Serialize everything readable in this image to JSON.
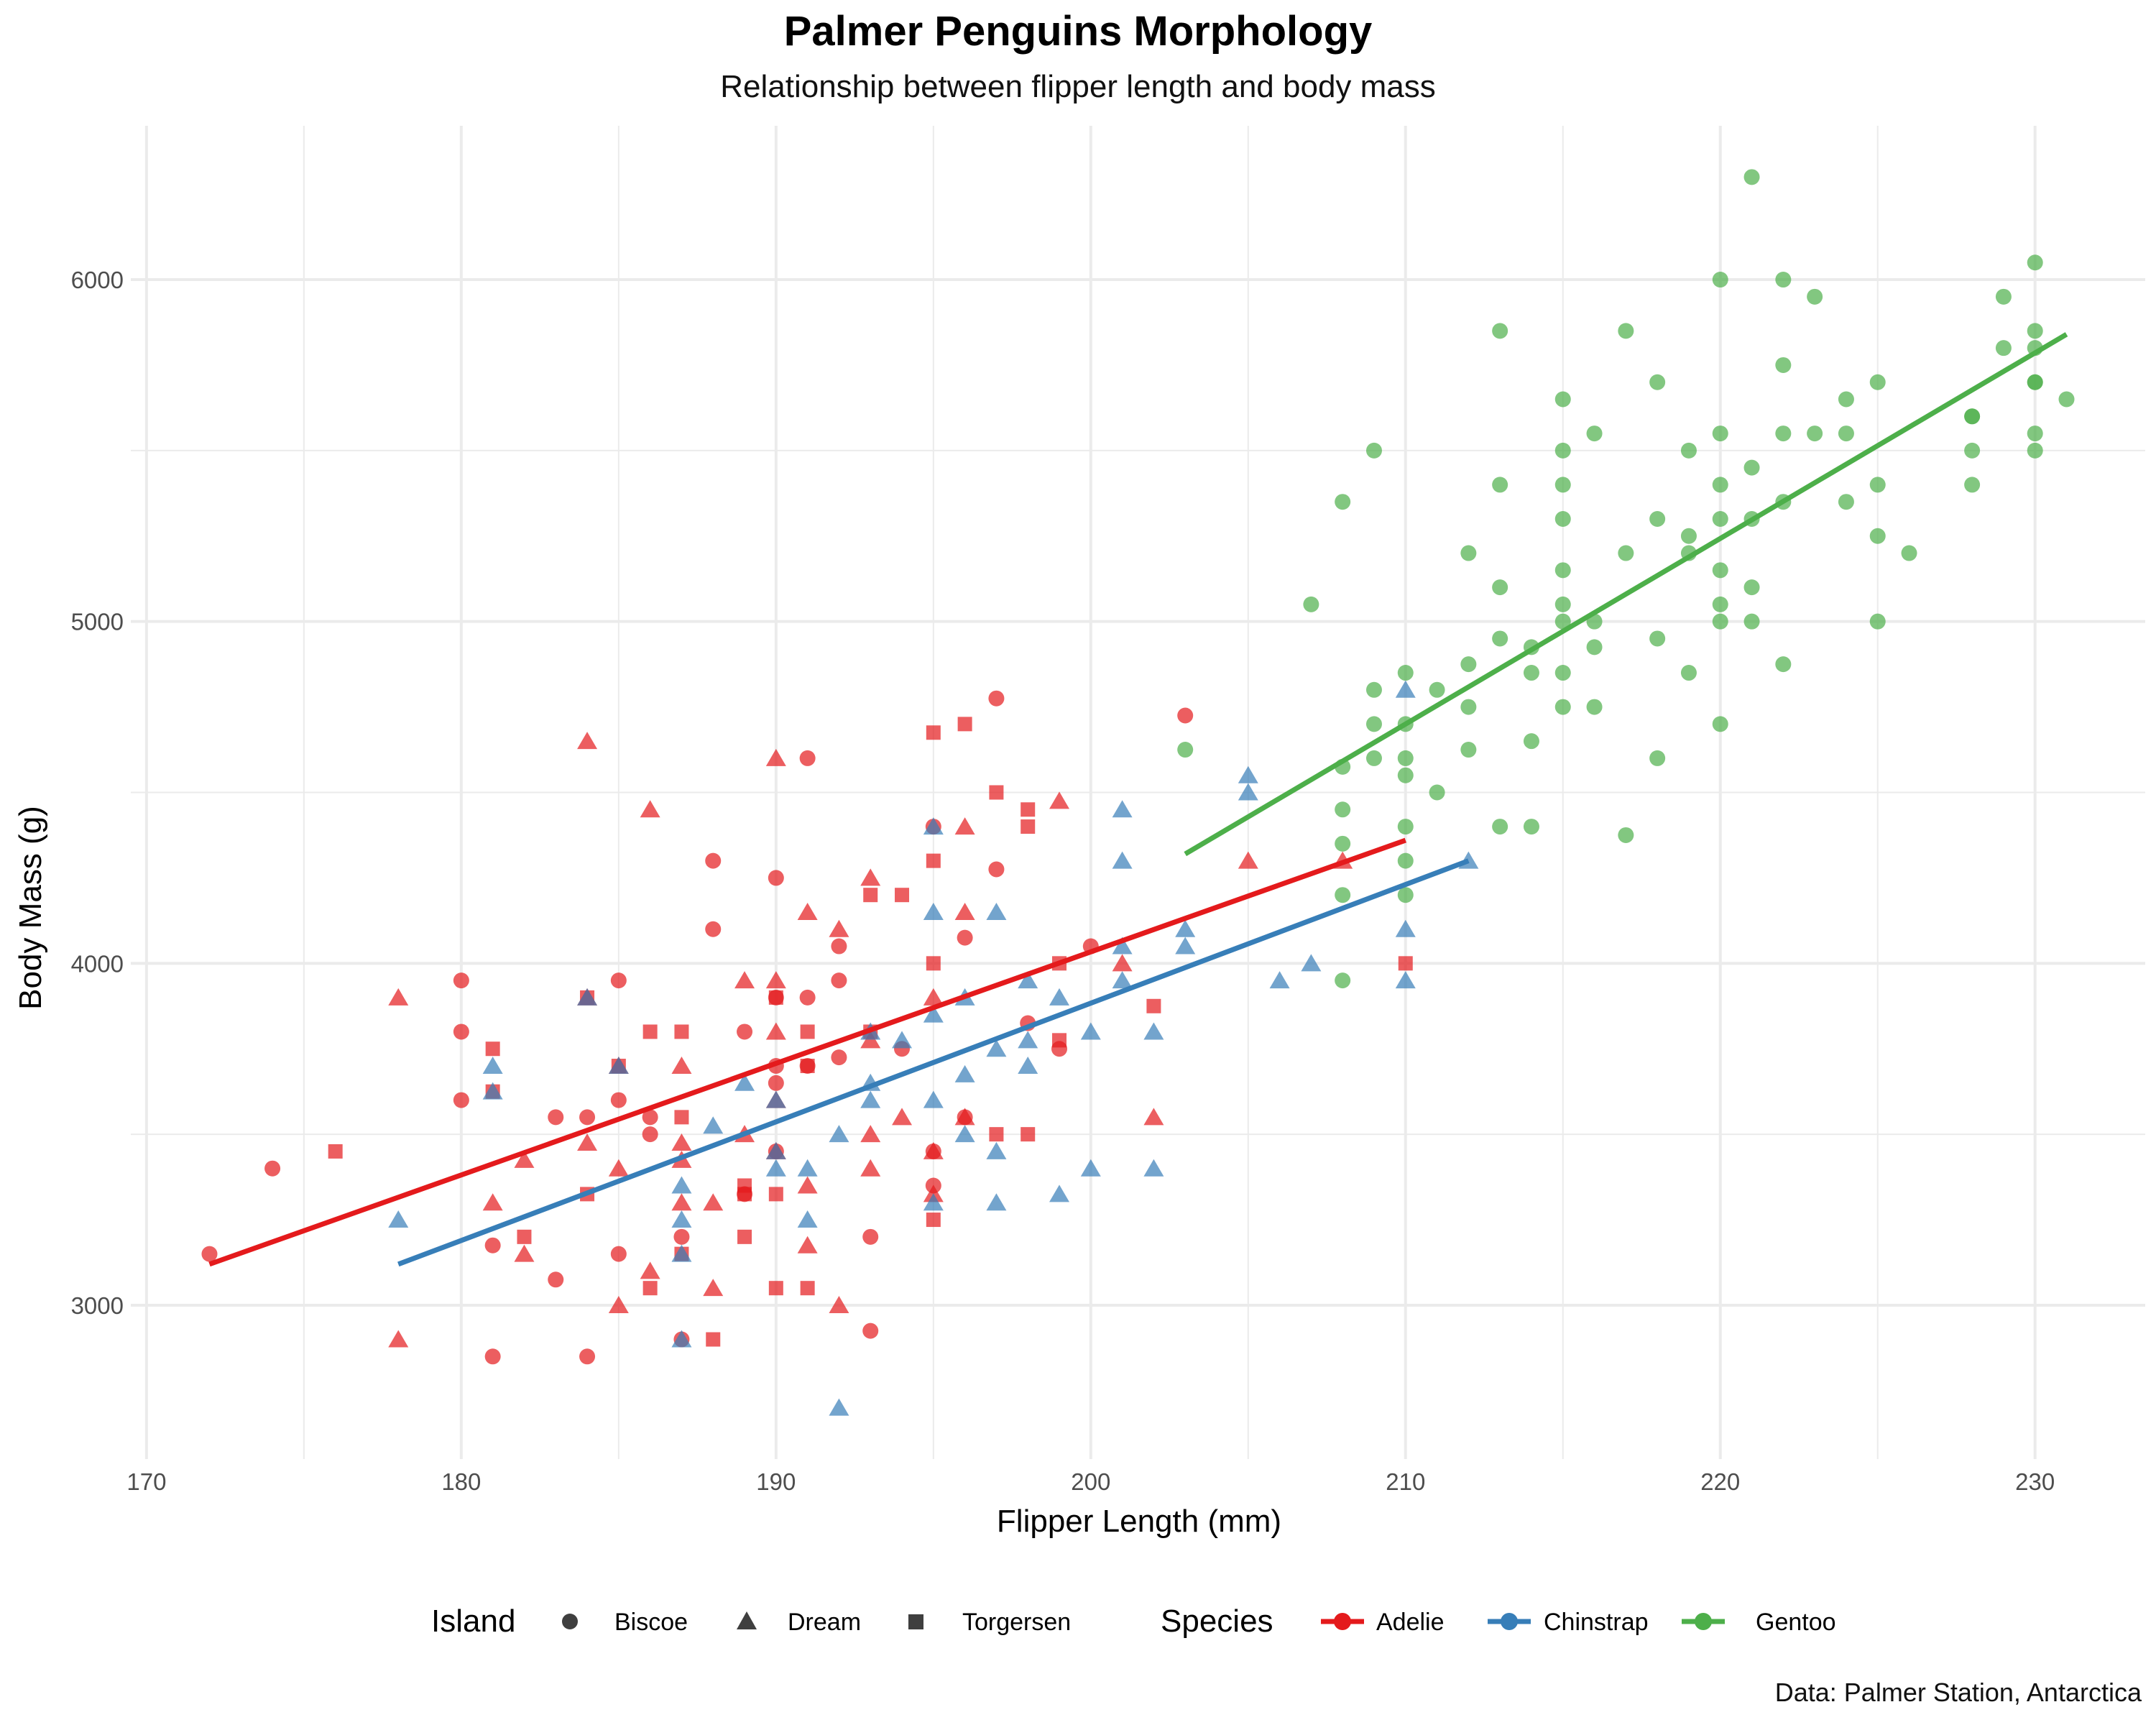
{
  "title": "Palmer Penguins Morphology",
  "subtitle": "Relationship between flipper length and body mass",
  "caption": "Data: Palmer Station, Antarctica",
  "colors": {
    "Adelie": "#e41a1c",
    "Chinstrap": "#377eb8",
    "Gentoo": "#4daf4a",
    "grid": "#ebebeb"
  },
  "legend": {
    "island_title": "Island",
    "islands": [
      "Biscoe",
      "Dream",
      "Torgersen"
    ],
    "species_title": "Species",
    "species": [
      "Adelie",
      "Chinstrap",
      "Gentoo"
    ],
    "position": "bottom"
  },
  "chart_data": {
    "type": "scatter",
    "title": "Palmer Penguins Morphology",
    "subtitle": "Relationship between flipper length and body mass",
    "xlabel": "Flipper Length (mm)",
    "ylabel": "Body Mass (g)",
    "xlim": [
      169.5,
      233.5
    ],
    "ylim": [
      2550,
      6450
    ],
    "x_ticks": [
      170,
      180,
      190,
      200,
      210,
      220,
      230
    ],
    "y_ticks": [
      3000,
      4000,
      5000,
      6000
    ],
    "grid": true,
    "shape_key": {
      "Biscoe": "circle",
      "Dream": "triangle",
      "Torgersen": "square"
    },
    "trend_lines": [
      {
        "name": "Adelie",
        "x": [
          172,
          210
        ],
        "y": [
          3120,
          4360
        ]
      },
      {
        "name": "Chinstrap",
        "x": [
          178,
          212
        ],
        "y": [
          3120,
          4300
        ]
      },
      {
        "name": "Gentoo",
        "x": [
          203,
          231
        ],
        "y": [
          4320,
          5840
        ]
      }
    ],
    "series": [
      {
        "name": "Adelie",
        "island": "Biscoe",
        "shape": "circle",
        "x": [
          172,
          174,
          180,
          180,
          180,
          181,
          181,
          183,
          183,
          184,
          184,
          185,
          185,
          185,
          186,
          186,
          187,
          187,
          188,
          188,
          189,
          189,
          190,
          190,
          190,
          190,
          190,
          191,
          191,
          191,
          192,
          192,
          192,
          193,
          193,
          194,
          195,
          195,
          195,
          196,
          196,
          197,
          197,
          198,
          199,
          200,
          203
        ],
        "y": [
          3150,
          3400,
          3950,
          3800,
          3600,
          3175,
          2850,
          3550,
          3075,
          3550,
          2850,
          3950,
          3600,
          3150,
          3550,
          3500,
          3200,
          2900,
          4300,
          4100,
          3800,
          3325,
          4250,
          3900,
          3700,
          3650,
          3450,
          4600,
          3900,
          3700,
          4050,
          3950,
          3725,
          3200,
          2925,
          3750,
          4400,
          3350,
          3450,
          4075,
          3550,
          4775,
          4275,
          3825,
          3750,
          4050,
          4725
        ]
      },
      {
        "name": "Adelie",
        "island": "Dream",
        "shape": "triangle",
        "x": [
          178,
          178,
          181,
          182,
          182,
          184,
          184,
          184,
          185,
          185,
          185,
          186,
          186,
          187,
          187,
          187,
          187,
          188,
          188,
          189,
          189,
          190,
          190,
          190,
          190,
          190,
          191,
          191,
          191,
          192,
          192,
          193,
          193,
          193,
          193,
          194,
          195,
          195,
          195,
          196,
          196,
          196,
          199,
          201,
          202,
          205,
          208
        ],
        "y": [
          3900,
          2900,
          3300,
          3425,
          3150,
          4650,
          3900,
          3475,
          3700,
          3400,
          3000,
          4450,
          3100,
          3700,
          3475,
          3425,
          3300,
          3300,
          3050,
          3950,
          3500,
          4600,
          3950,
          3800,
          3600,
          3450,
          4150,
          3350,
          3175,
          4100,
          3000,
          4250,
          3775,
          3500,
          3400,
          3550,
          3900,
          3450,
          3325,
          4400,
          4150,
          3550,
          4475,
          4000,
          3550,
          4300,
          4300
        ]
      },
      {
        "name": "Adelie",
        "island": "Torgersen",
        "shape": "square",
        "x": [
          176,
          181,
          181,
          182,
          184,
          184,
          185,
          186,
          186,
          187,
          187,
          187,
          188,
          189,
          189,
          189,
          190,
          190,
          190,
          191,
          191,
          191,
          193,
          193,
          194,
          195,
          195,
          195,
          195,
          196,
          197,
          197,
          198,
          198,
          198,
          199,
          199,
          202,
          210
        ],
        "y": [
          3450,
          3750,
          3625,
          3200,
          3900,
          3325,
          3700,
          3800,
          3050,
          3800,
          3550,
          3150,
          2900,
          3350,
          3325,
          3200,
          3900,
          3325,
          3050,
          3800,
          3700,
          3050,
          4200,
          3800,
          4200,
          4675,
          4300,
          4000,
          3250,
          4700,
          4500,
          3500,
          4450,
          4400,
          3500,
          4000,
          3775,
          3875,
          4000
        ]
      },
      {
        "name": "Chinstrap",
        "island": "Dream",
        "shape": "triangle",
        "x": [
          178,
          181,
          181,
          184,
          185,
          187,
          187,
          187,
          187,
          188,
          189,
          190,
          190,
          190,
          191,
          191,
          192,
          192,
          193,
          193,
          193,
          194,
          195,
          195,
          195,
          195,
          195,
          196,
          196,
          196,
          197,
          197,
          197,
          197,
          198,
          198,
          198,
          199,
          199,
          200,
          200,
          201,
          201,
          201,
          201,
          202,
          202,
          203,
          203,
          205,
          205,
          206,
          207,
          210,
          210,
          210,
          212
        ],
        "y": [
          3250,
          3700,
          3625,
          3900,
          3700,
          3350,
          3250,
          3150,
          2900,
          3525,
          3650,
          3600,
          3450,
          3400,
          3400,
          3250,
          3500,
          2700,
          3800,
          3650,
          3600,
          3775,
          4400,
          4150,
          3850,
          3600,
          3300,
          3900,
          3675,
          3500,
          4150,
          3750,
          3450,
          3300,
          3950,
          3775,
          3700,
          3900,
          3325,
          3800,
          3400,
          4450,
          4300,
          4050,
          3950,
          3800,
          3400,
          4100,
          4050,
          4550,
          4500,
          3950,
          4000,
          4800,
          4100,
          3950,
          4300
        ]
      },
      {
        "name": "Gentoo",
        "island": "Biscoe",
        "shape": "circle",
        "x": [
          203,
          207,
          208,
          208,
          208,
          208,
          208,
          208,
          209,
          209,
          209,
          209,
          210,
          210,
          210,
          210,
          210,
          210,
          210,
          211,
          211,
          212,
          212,
          212,
          212,
          213,
          213,
          213,
          213,
          213,
          214,
          214,
          214,
          214,
          215,
          215,
          215,
          215,
          215,
          215,
          215,
          215,
          215,
          216,
          216,
          216,
          216,
          217,
          217,
          217,
          218,
          218,
          218,
          218,
          219,
          219,
          219,
          219,
          220,
          220,
          220,
          220,
          220,
          220,
          220,
          220,
          221,
          221,
          221,
          221,
          221,
          222,
          222,
          222,
          222,
          222,
          223,
          223,
          224,
          224,
          224,
          225,
          225,
          225,
          225,
          226,
          228,
          228,
          228,
          228,
          229,
          229,
          230,
          230,
          230,
          230,
          230,
          230,
          230,
          231
        ],
        "y": [
          4625,
          5050,
          5350,
          4575,
          4450,
          4350,
          4200,
          3950,
          5500,
          4800,
          4700,
          4600,
          4850,
          4700,
          4600,
          4550,
          4400,
          4300,
          4200,
          4800,
          4500,
          5200,
          4875,
          4750,
          4625,
          5850,
          5400,
          5100,
          4950,
          4400,
          4925,
          4850,
          4650,
          4400,
          5650,
          5500,
          5400,
          5300,
          5150,
          5050,
          5000,
          4850,
          4750,
          5550,
          5000,
          4925,
          4750,
          5850,
          5200,
          4375,
          5700,
          5300,
          4950,
          4600,
          5500,
          5250,
          5200,
          4850,
          6000,
          5550,
          5400,
          5300,
          5150,
          5050,
          5000,
          4700,
          6300,
          5450,
          5300,
          5100,
          5000,
          6000,
          5750,
          5550,
          5350,
          4875,
          5950,
          5550,
          5650,
          5550,
          5350,
          5700,
          5400,
          5250,
          5000,
          5200,
          5600,
          5500,
          5400,
          5600,
          5950,
          5800,
          6050,
          5850,
          5800,
          5700,
          5550,
          5500,
          5700,
          5650
        ]
      }
    ]
  }
}
